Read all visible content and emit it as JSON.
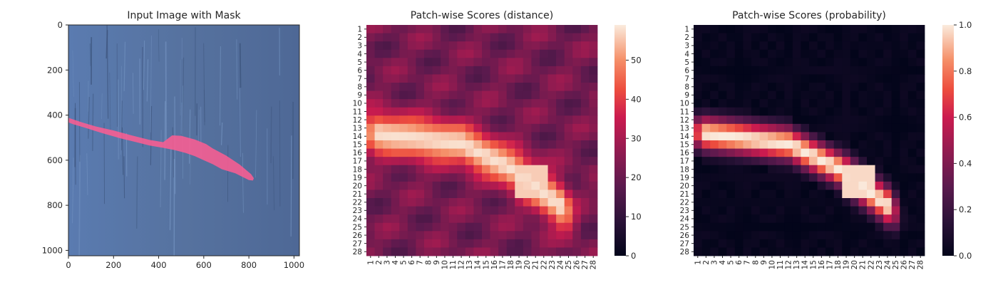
{
  "chart_data": [
    {
      "type": "image",
      "title": "Input Image with Mask",
      "xlim": [
        0,
        1024
      ],
      "ylim": [
        1024,
        0
      ],
      "xticks": [
        0,
        200,
        400,
        600,
        800,
        1000
      ],
      "yticks": [
        0,
        200,
        400,
        600,
        800,
        1000
      ],
      "mask_polygon": [
        [
          0,
          412
        ],
        [
          60,
          432
        ],
        [
          120,
          450
        ],
        [
          200,
          468
        ],
        [
          280,
          490
        ],
        [
          360,
          510
        ],
        [
          420,
          520
        ],
        [
          460,
          490
        ],
        [
          500,
          492
        ],
        [
          560,
          508
        ],
        [
          610,
          528
        ],
        [
          640,
          548
        ],
        [
          700,
          580
        ],
        [
          760,
          620
        ],
        [
          810,
          662
        ],
        [
          822,
          680
        ],
        [
          818,
          690
        ],
        [
          800,
          688
        ],
        [
          740,
          658
        ],
        [
          680,
          640
        ],
        [
          640,
          618
        ],
        [
          600,
          600
        ],
        [
          560,
          582
        ],
        [
          520,
          568
        ],
        [
          470,
          555
        ],
        [
          420,
          545
        ],
        [
          360,
          535
        ],
        [
          300,
          520
        ],
        [
          230,
          503
        ],
        [
          150,
          480
        ],
        [
          80,
          458
        ],
        [
          20,
          440
        ],
        [
          0,
          432
        ]
      ],
      "mask_color": "#ff6b9a",
      "background_color": "#5877a8"
    },
    {
      "type": "heatmap",
      "title": "Patch-wise Scores (distance)",
      "xticks": [
        "1",
        "2",
        "3",
        "4",
        "5",
        "6",
        "7",
        "8",
        "9",
        "10",
        "11",
        "12",
        "13",
        "14",
        "15",
        "16",
        "17",
        "18",
        "19",
        "20",
        "21",
        "22",
        "23",
        "24",
        "25",
        "26",
        "27",
        "28"
      ],
      "yticks": [
        "1",
        "2",
        "3",
        "4",
        "5",
        "6",
        "7",
        "8",
        "9",
        "10",
        "11",
        "12",
        "13",
        "14",
        "15",
        "16",
        "17",
        "18",
        "19",
        "20",
        "21",
        "22",
        "23",
        "24",
        "25",
        "26",
        "27",
        "28"
      ],
      "colorbar_ticks": [
        0,
        10,
        20,
        30,
        40,
        50
      ],
      "vmin": 0,
      "vmax": 59,
      "colormap": "rocket"
    },
    {
      "type": "heatmap",
      "title": "Patch-wise Scores (probability)",
      "xticks": [
        "1",
        "2",
        "3",
        "4",
        "5",
        "6",
        "7",
        "8",
        "9",
        "10",
        "11",
        "12",
        "13",
        "14",
        "15",
        "16",
        "17",
        "18",
        "19",
        "20",
        "21",
        "22",
        "23",
        "24",
        "25",
        "26",
        "27",
        "28"
      ],
      "yticks": [
        "1",
        "2",
        "3",
        "4",
        "5",
        "6",
        "7",
        "8",
        "9",
        "10",
        "11",
        "12",
        "13",
        "14",
        "15",
        "16",
        "17",
        "18",
        "19",
        "20",
        "21",
        "22",
        "23",
        "24",
        "25",
        "26",
        "27",
        "28"
      ],
      "colorbar_ticks": [
        "0.0",
        "0.2",
        "0.4",
        "0.6",
        "0.8",
        "1.0"
      ],
      "colorbar_values": [
        0.0,
        0.2,
        0.4,
        0.6,
        0.8,
        1.0
      ],
      "vmin": 0,
      "vmax": 1,
      "colormap": "rocket"
    }
  ]
}
